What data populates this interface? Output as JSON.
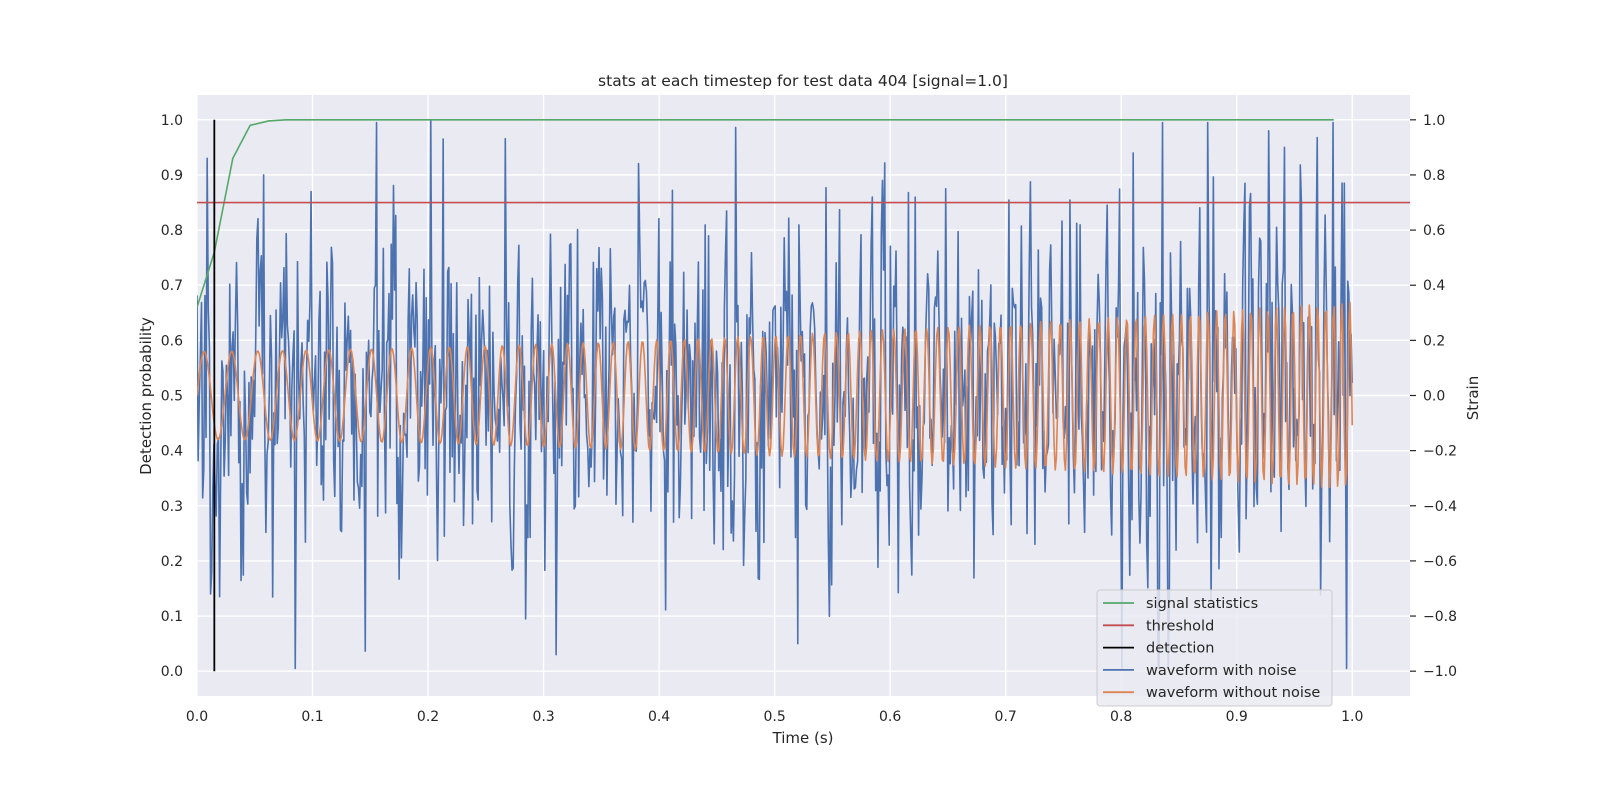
{
  "chart_data": {
    "type": "line",
    "title": "stats at each timestep for test data 404 [signal=1.0]",
    "xlabel": "Time (s)",
    "ylabel_left": "Detection probability",
    "ylabel_right": "Strain",
    "xlim": [
      0.0,
      1.05
    ],
    "ylim_left": [
      -0.045,
      1.045
    ],
    "ylim_right": [
      -1.09,
      1.09
    ],
    "x_ticks": [
      "0.0",
      "0.1",
      "0.2",
      "0.3",
      "0.4",
      "0.5",
      "0.6",
      "0.7",
      "0.8",
      "0.9",
      "1.0"
    ],
    "y_left_ticks": [
      "0.0",
      "0.1",
      "0.2",
      "0.3",
      "0.4",
      "0.5",
      "0.6",
      "0.7",
      "0.8",
      "0.9",
      "1.0"
    ],
    "y_right_ticks": [
      "−1.0",
      "−0.8",
      "−0.6",
      "−0.4",
      "−0.2",
      "0.0",
      "0.2",
      "0.4",
      "0.6",
      "0.8",
      "1.0"
    ],
    "grid": true,
    "legend_position": "bottom-right",
    "colors": {
      "plot_background": "#eaeaf2",
      "grid": "#ffffff",
      "signal_statistics": "#55a868",
      "threshold": "#c44e52",
      "detection": "#000000",
      "waveform_with_noise": "#4c72b0",
      "waveform_without_noise": "#dd8452"
    },
    "series": [
      {
        "name": "signal statistics",
        "axis": "left",
        "x": [
          0.0,
          0.015,
          0.031,
          0.046,
          0.062,
          0.077,
          0.1,
          0.2,
          0.4,
          0.6,
          0.8,
          0.984
        ],
        "values": [
          0.66,
          0.76,
          0.93,
          0.99,
          0.998,
          1.0,
          1.0,
          1.0,
          1.0,
          1.0,
          1.0,
          1.0
        ]
      },
      {
        "name": "threshold",
        "axis": "left",
        "x": [
          0.0,
          1.05
        ],
        "values": [
          0.85,
          0.85
        ]
      },
      {
        "name": "detection",
        "axis": "left",
        "x": [
          0.015,
          0.015
        ],
        "values": [
          0.0,
          1.0
        ]
      },
      {
        "name": "waveform with noise",
        "axis": "right",
        "x_range": [
          0.0,
          1.0
        ],
        "points": 1024,
        "noise_std": 0.3,
        "peaks": [
          {
            "x": 0.202,
            "y": 1.0
          },
          {
            "x": 0.213,
            "y": 0.93
          },
          {
            "x": 0.928,
            "y": 0.96
          },
          {
            "x": 0.81,
            "y": 0.88
          },
          {
            "x": 0.993,
            "y": 0.77
          },
          {
            "x": 0.058,
            "y": 0.8
          },
          {
            "x": 0.099,
            "y": 0.74
          },
          {
            "x": 0.648,
            "y": 0.75
          },
          {
            "x": 0.311,
            "y": -0.94
          },
          {
            "x": 0.52,
            "y": -0.9
          },
          {
            "x": 0.284,
            "y": -0.81
          },
          {
            "x": 0.012,
            "y": -0.72
          }
        ]
      },
      {
        "name": "waveform without noise",
        "axis": "right",
        "x_range": [
          0.0,
          1.0
        ],
        "points": 1024,
        "amplitude_start": 0.16,
        "amplitude_end": 0.34,
        "frequency_start_hz": 40,
        "frequency_end_hz": 145
      }
    ],
    "legend": [
      "signal statistics",
      "threshold",
      "detection",
      "waveform with noise",
      "waveform without noise"
    ]
  }
}
